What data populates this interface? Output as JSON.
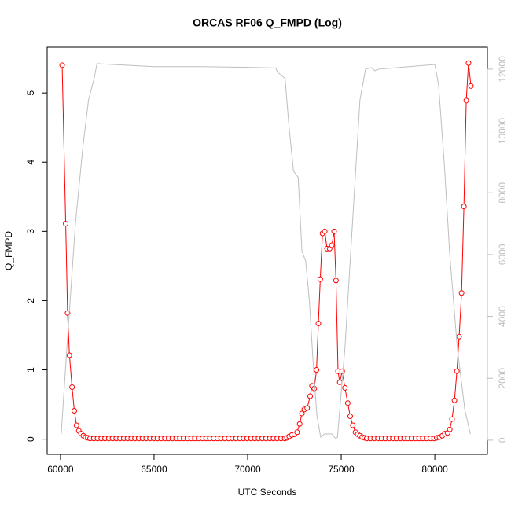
{
  "chart_data": {
    "type": "line",
    "title": "ORCAS RF06 Q_FMPD (Log)",
    "x_label": "UTC Seconds",
    "y_label": "Q_FMPD",
    "xlim": [
      59290,
      82810
    ],
    "ylim": [
      -0.22,
      5.66
    ],
    "y2lim": [
      -460,
      12710
    ],
    "xticks": [
      60000,
      65000,
      70000,
      75000,
      80000
    ],
    "yticks": [
      0,
      1,
      2,
      3,
      4,
      5
    ],
    "y2ticks": [
      0,
      2000,
      4000,
      6000,
      8000,
      10000,
      12000
    ],
    "y2_color": "#bebebe",
    "series": [
      {
        "color": "#ff0000",
        "marker": "circle",
        "x": [
          60090,
          60280,
          60380,
          60480,
          60620,
          60740,
          60860,
          60980,
          61100,
          61220,
          61340,
          61460,
          61580,
          61780,
          61980,
          62180,
          62380,
          62580,
          62780,
          62980,
          63180,
          63380,
          63580,
          63780,
          63980,
          64180,
          64380,
          64580,
          64780,
          64980,
          65180,
          65380,
          65580,
          65780,
          65980,
          66180,
          66380,
          66580,
          66780,
          66980,
          67180,
          67380,
          67580,
          67780,
          67980,
          68180,
          68380,
          68580,
          68780,
          68980,
          69180,
          69380,
          69580,
          69780,
          69980,
          70180,
          70380,
          70580,
          70780,
          70980,
          71180,
          71380,
          71580,
          71780,
          71980,
          72100,
          72220,
          72360,
          72500,
          72640,
          72780,
          72900,
          73030,
          73180,
          73340,
          73440,
          73560,
          73680,
          73780,
          73880,
          74000,
          74120,
          74240,
          74380,
          74500,
          74620,
          74720,
          74830,
          74920,
          75050,
          75200,
          75350,
          75480,
          75620,
          75760,
          75880,
          76000,
          76120,
          76240,
          76360,
          76560,
          76760,
          76960,
          77160,
          77360,
          77560,
          77760,
          77960,
          78160,
          78360,
          78560,
          78760,
          78960,
          79160,
          79360,
          79560,
          79760,
          79960,
          80100,
          80250,
          80400,
          80540,
          80680,
          80800,
          80920,
          81050,
          81180,
          81300,
          81430,
          81555,
          81680,
          81800,
          81930
        ],
        "values": [
          5.4,
          3.11,
          1.82,
          1.21,
          0.75,
          0.41,
          0.2,
          0.12,
          0.08,
          0.05,
          0.03,
          0.02,
          0.01,
          0.01,
          0.01,
          0.01,
          0.01,
          0.01,
          0.01,
          0.01,
          0.01,
          0.01,
          0.01,
          0.01,
          0.01,
          0.01,
          0.01,
          0.01,
          0.01,
          0.01,
          0.01,
          0.01,
          0.01,
          0.01,
          0.01,
          0.01,
          0.01,
          0.01,
          0.01,
          0.01,
          0.01,
          0.01,
          0.01,
          0.01,
          0.01,
          0.01,
          0.01,
          0.01,
          0.01,
          0.01,
          0.01,
          0.01,
          0.01,
          0.01,
          0.01,
          0.01,
          0.01,
          0.01,
          0.01,
          0.01,
          0.01,
          0.01,
          0.01,
          0.01,
          0.01,
          0.02,
          0.04,
          0.06,
          0.07,
          0.1,
          0.22,
          0.37,
          0.43,
          0.45,
          0.62,
          0.77,
          0.73,
          1.0,
          1.67,
          2.31,
          2.97,
          3.0,
          2.75,
          2.75,
          2.8,
          3.0,
          2.29,
          0.98,
          0.82,
          0.98,
          0.74,
          0.52,
          0.33,
          0.2,
          0.1,
          0.07,
          0.05,
          0.03,
          0.02,
          0.01,
          0.01,
          0.01,
          0.01,
          0.01,
          0.01,
          0.01,
          0.01,
          0.01,
          0.01,
          0.01,
          0.01,
          0.01,
          0.01,
          0.01,
          0.01,
          0.01,
          0.01,
          0.01,
          0.02,
          0.03,
          0.05,
          0.08,
          0.09,
          0.14,
          0.29,
          0.56,
          0.98,
          1.48,
          2.11,
          3.36,
          4.89,
          5.43,
          5.1
        ]
      },
      {
        "color": "#bebebe",
        "axis": "y2",
        "x": [
          60040,
          60400,
          60800,
          61200,
          61500,
          61800,
          61950,
          62500,
          65000,
          67500,
          70000,
          71500,
          71600,
          72000,
          72200,
          72450,
          72700,
          72900,
          73100,
          73300,
          73500,
          73700,
          73900,
          74100,
          74500,
          74700,
          74800,
          75200,
          75600,
          76000,
          76300,
          76600,
          76800,
          77000,
          78000,
          80000,
          80200,
          80500,
          80800,
          81200,
          81600,
          81900
        ],
        "values": [
          200,
          3500,
          7000,
          9500,
          11000,
          11700,
          12180,
          12160,
          12080,
          12080,
          12060,
          12040,
          11900,
          11700,
          10200,
          8700,
          8500,
          6100,
          5800,
          4500,
          2500,
          800,
          100,
          200,
          200,
          50,
          100,
          3000,
          7000,
          11000,
          12000,
          12050,
          11950,
          12000,
          12050,
          12150,
          11500,
          9000,
          6000,
          3000,
          1000,
          200
        ]
      }
    ]
  }
}
